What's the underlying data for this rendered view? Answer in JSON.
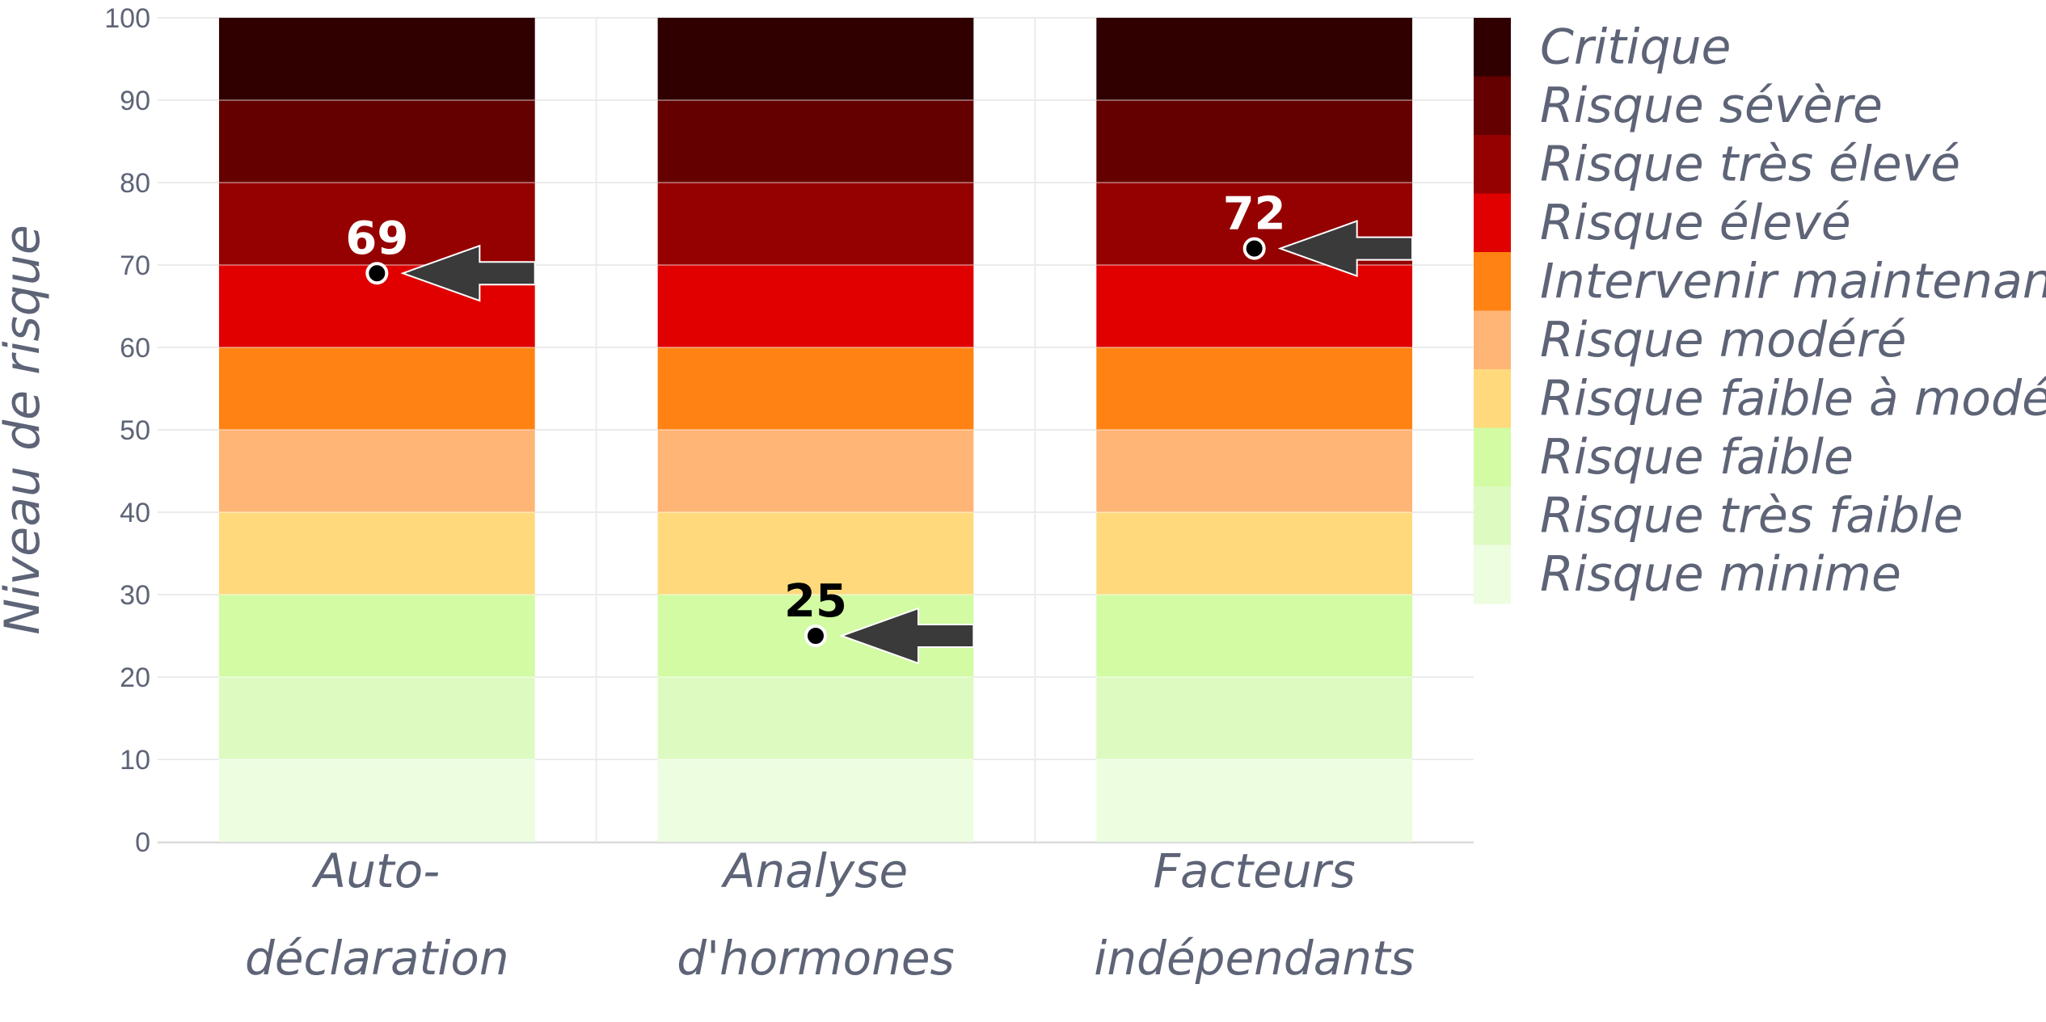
{
  "chart_data": {
    "type": "bar",
    "stacked": true,
    "ylabel": "Niveau de risque",
    "xlabel": "",
    "ylim": [
      0,
      100
    ],
    "yticks": [
      0,
      10,
      20,
      30,
      40,
      50,
      60,
      70,
      80,
      90,
      100
    ],
    "grid": true,
    "legend_position": "right",
    "categories": [
      [
        "Auto-",
        "déclaration"
      ],
      [
        "Analyse",
        "d'hormones"
      ],
      [
        "Facteurs",
        "indépendants"
      ]
    ],
    "bands": [
      {
        "label": "Risque minime",
        "from": 0,
        "to": 10,
        "color": "#edfde0"
      },
      {
        "label": "Risque très faible",
        "from": 10,
        "to": 20,
        "color": "#ddfbc1"
      },
      {
        "label": "Risque faible",
        "from": 20,
        "to": 30,
        "color": "#d2fba3"
      },
      {
        "label": "Risque faible à modéré",
        "from": 30,
        "to": 40,
        "color": "#ffd97c"
      },
      {
        "label": "Risque modéré",
        "from": 40,
        "to": 50,
        "color": "#ffb575"
      },
      {
        "label": "Intervenir maintenant",
        "from": 50,
        "to": 60,
        "color": "#ff8213"
      },
      {
        "label": "Risque élevé",
        "from": 60,
        "to": 70,
        "color": "#e00000"
      },
      {
        "label": "Risque très élevé",
        "from": 70,
        "to": 80,
        "color": "#950000"
      },
      {
        "label": "Risque sévère",
        "from": 80,
        "to": 90,
        "color": "#640000"
      },
      {
        "label": "Critique",
        "from": 90,
        "to": 100,
        "color": "#300000"
      }
    ],
    "markers": [
      {
        "category_index": 0,
        "value": 69,
        "label": "69",
        "label_color": "#ffffff",
        "dot_color": "#000000",
        "dot_stroke": "#ffffff"
      },
      {
        "category_index": 1,
        "value": 25,
        "label": "25",
        "label_color": "#000000",
        "dot_color": "#000000",
        "dot_stroke": "#ffffff"
      },
      {
        "category_index": 2,
        "value": 72,
        "label": "72",
        "label_color": "#ffffff",
        "dot_color": "#000000",
        "dot_stroke": "#ffffff"
      }
    ],
    "arrow_color": "#3a3a3a"
  }
}
